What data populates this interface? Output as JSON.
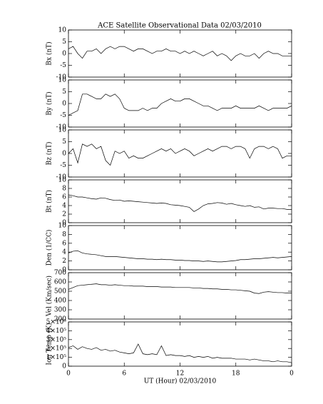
{
  "chart_data": [
    {
      "type": "line",
      "title": "ACE Satellite Observational Data   02/03/2010",
      "ylabel": "Bx (nT)",
      "color": "#000000",
      "xlim": [
        0,
        24
      ],
      "ylim": [
        -10,
        10
      ],
      "yticks": [
        -10,
        -5,
        0,
        5,
        10
      ],
      "x": [
        0,
        0.5,
        1,
        1.5,
        2,
        2.5,
        3,
        3.5,
        4,
        4.5,
        5,
        5.5,
        6,
        6.5,
        7,
        7.5,
        8,
        8.5,
        9,
        9.5,
        10,
        10.5,
        11,
        11.5,
        12,
        12.5,
        13,
        13.5,
        14,
        14.5,
        15,
        15.5,
        16,
        16.5,
        17,
        17.5,
        18,
        18.5,
        19,
        19.5,
        20,
        20.5,
        21,
        21.5,
        22,
        22.5,
        23,
        23.5,
        24
      ],
      "values": [
        2,
        3,
        0,
        -2,
        1,
        1,
        2,
        0,
        2,
        3,
        2,
        3,
        3,
        2,
        1,
        2,
        2,
        1,
        0,
        1,
        1,
        2,
        1,
        1,
        0,
        1,
        0,
        1,
        0,
        -1,
        0,
        1,
        -1,
        0,
        -1,
        -3,
        -1,
        0,
        -1,
        -1,
        0,
        -2,
        0,
        1,
        0,
        0,
        -1,
        -1,
        -1
      ]
    },
    {
      "type": "line",
      "ylabel": "By (nT)",
      "color": "#000000",
      "xlim": [
        0,
        24
      ],
      "ylim": [
        -10,
        10
      ],
      "yticks": [
        -10,
        -5,
        0,
        5,
        10
      ],
      "x": [
        0,
        0.5,
        1,
        1.5,
        2,
        2.5,
        3,
        3.5,
        4,
        4.5,
        5,
        5.5,
        6,
        6.5,
        7,
        7.5,
        8,
        8.5,
        9,
        9.5,
        10,
        10.5,
        11,
        11.5,
        12,
        12.5,
        13,
        13.5,
        14,
        14.5,
        15,
        15.5,
        16,
        16.5,
        17,
        17.5,
        18,
        18.5,
        19,
        19.5,
        20,
        20.5,
        21,
        21.5,
        22,
        22.5,
        23,
        23.5,
        24
      ],
      "values": [
        -5,
        -4,
        -3,
        4,
        4,
        3,
        2,
        2,
        4,
        3,
        4,
        2,
        -2,
        -3,
        -3,
        -3,
        -2,
        -3,
        -2,
        -2,
        0,
        1,
        2,
        1,
        1,
        2,
        2,
        1,
        0,
        -1,
        -1,
        -2,
        -3,
        -2,
        -2,
        -2,
        -1,
        -2,
        -2,
        -2,
        -2,
        -1,
        -2,
        -3,
        -2,
        -2,
        -2,
        -2,
        -1
      ]
    },
    {
      "type": "line",
      "ylabel": "Bz (nT)",
      "color": "#000000",
      "xlim": [
        0,
        24
      ],
      "ylim": [
        -10,
        10
      ],
      "yticks": [
        -10,
        -5,
        0,
        5,
        10
      ],
      "x": [
        0,
        0.5,
        1,
        1.5,
        2,
        2.5,
        3,
        3.5,
        4,
        4.5,
        5,
        5.5,
        6,
        6.5,
        7,
        7.5,
        8,
        8.5,
        9,
        9.5,
        10,
        10.5,
        11,
        11.5,
        12,
        12.5,
        13,
        13.5,
        14,
        14.5,
        15,
        15.5,
        16,
        16.5,
        17,
        17.5,
        18,
        18.5,
        19,
        19.5,
        20,
        20.5,
        21,
        21.5,
        22,
        22.5,
        23,
        23.5,
        24
      ],
      "values": [
        0,
        2,
        -4,
        4,
        3,
        4,
        2,
        3,
        -3,
        -5,
        1,
        0,
        1,
        -2,
        -1,
        -2,
        -2,
        -1,
        0,
        1,
        2,
        1,
        2,
        0,
        1,
        2,
        1,
        -1,
        0,
        1,
        2,
        1,
        2,
        3,
        3,
        2,
        3,
        3,
        2,
        -2,
        2,
        3,
        3,
        2,
        3,
        2,
        -2,
        -1,
        -1
      ]
    },
    {
      "type": "line",
      "ylabel": "Bt (nT)",
      "color": "#000000",
      "xlim": [
        0,
        24
      ],
      "ylim": [
        0,
        10
      ],
      "yticks": [
        0,
        2,
        4,
        6,
        8,
        10
      ],
      "x": [
        0,
        0.5,
        1,
        1.5,
        2,
        2.5,
        3,
        3.5,
        4,
        4.5,
        5,
        5.5,
        6,
        6.5,
        7,
        7.5,
        8,
        8.5,
        9,
        9.5,
        10,
        10.5,
        11,
        11.5,
        12,
        12.5,
        13,
        13.5,
        14,
        14.5,
        15,
        15.5,
        16,
        16.5,
        17,
        17.5,
        18,
        18.5,
        19,
        19.5,
        20,
        20.5,
        21,
        21.5,
        22,
        22.5,
        23,
        23.5,
        24
      ],
      "values": [
        6.5,
        6.3,
        6,
        6,
        5.8,
        5.6,
        5.5,
        5.8,
        5.7,
        5.4,
        5.2,
        5.3,
        5,
        5.1,
        5,
        4.9,
        4.8,
        4.7,
        4.6,
        4.5,
        4.6,
        4.5,
        4.2,
        4.1,
        4,
        3.8,
        3.6,
        2.6,
        3.2,
        4,
        4.4,
        4.5,
        4.7,
        4.6,
        4.3,
        4.5,
        4.2,
        4,
        3.8,
        4,
        3.6,
        3.7,
        3.2,
        3.4,
        3.4,
        3.3,
        3.3,
        3.1,
        3.1
      ]
    },
    {
      "type": "line",
      "ylabel": "Den (1/CC)",
      "color": "#000000",
      "xlim": [
        0,
        24
      ],
      "ylim": [
        0,
        10
      ],
      "yticks": [
        0,
        2,
        4,
        6,
        8,
        10
      ],
      "x": [
        0,
        0.5,
        1,
        1.5,
        2,
        2.5,
        3,
        3.5,
        4,
        4.5,
        5,
        5.5,
        6,
        6.5,
        7,
        7.5,
        8,
        8.5,
        9,
        9.5,
        10,
        10.5,
        11,
        11.5,
        12,
        12.5,
        13,
        13.5,
        14,
        14.5,
        15,
        15.5,
        16,
        16.5,
        17,
        17.5,
        18,
        18.5,
        19,
        19.5,
        20,
        20.5,
        21,
        21.5,
        22,
        22.5,
        23,
        23.5,
        24
      ],
      "values": [
        3.8,
        4.2,
        4.3,
        3.8,
        3.6,
        3.5,
        3.4,
        3.2,
        3,
        3,
        3,
        2.9,
        2.8,
        2.7,
        2.6,
        2.5,
        2.5,
        2.4,
        2.4,
        2.3,
        2.4,
        2.3,
        2.3,
        2.2,
        2.2,
        2.1,
        2.1,
        2,
        2,
        1.9,
        2,
        1.9,
        1.8,
        1.8,
        1.9,
        2,
        2.1,
        2.3,
        2.3,
        2.4,
        2.5,
        2.5,
        2.6,
        2.7,
        2.8,
        2.7,
        2.8,
        2.9,
        3
      ]
    },
    {
      "type": "line",
      "ylabel": "Vel (Km/sec)",
      "color": "#000000",
      "xlim": [
        0,
        24
      ],
      "ylim": [
        200,
        700
      ],
      "yticks": [
        200,
        300,
        400,
        500,
        600,
        700
      ],
      "x": [
        0,
        0.5,
        1,
        1.5,
        2,
        2.5,
        3,
        3.5,
        4,
        4.5,
        5,
        5.5,
        6,
        6.5,
        7,
        7.5,
        8,
        8.5,
        9,
        9.5,
        10,
        10.5,
        11,
        11.5,
        12,
        12.5,
        13,
        13.5,
        14,
        14.5,
        15,
        15.5,
        16,
        16.5,
        17,
        17.5,
        18,
        18.5,
        19,
        19.5,
        20,
        20.5,
        21,
        21.5,
        22,
        22.5,
        23,
        23.5,
        24
      ],
      "values": [
        520,
        540,
        560,
        565,
        570,
        575,
        580,
        570,
        570,
        565,
        570,
        565,
        560,
        560,
        555,
        555,
        555,
        550,
        550,
        550,
        545,
        545,
        545,
        540,
        540,
        540,
        540,
        535,
        535,
        530,
        530,
        525,
        525,
        520,
        520,
        515,
        515,
        510,
        505,
        500,
        480,
        475,
        490,
        495,
        490,
        485,
        485,
        480,
        480
      ]
    },
    {
      "type": "line",
      "ylabel": "Ion Temp (K)",
      "xlabel": "UT (Hour)   02/03/2010",
      "color": "#000000",
      "xlim": [
        0,
        24
      ],
      "xticks": [
        0,
        6,
        12,
        18,
        {
          "value": 24,
          "label": "0"
        }
      ],
      "ylim": [
        0,
        500000
      ],
      "yticks": [
        0,
        {
          "value": 100000,
          "label": "1×10⁵"
        },
        {
          "value": 200000,
          "label": "2×10⁵"
        },
        {
          "value": 300000,
          "label": "3×10⁵"
        },
        {
          "value": 400000,
          "label": "4×10⁵"
        },
        {
          "value": 500000,
          "label": "5×10⁵"
        }
      ],
      "x": [
        0,
        0.5,
        1,
        1.5,
        2,
        2.5,
        3,
        3.5,
        4,
        4.5,
        5,
        5.5,
        6,
        6.5,
        7,
        7.5,
        8,
        8.5,
        9,
        9.5,
        10,
        10.5,
        11,
        11.5,
        12,
        12.5,
        13,
        13.5,
        14,
        14.5,
        15,
        15.5,
        16,
        16.5,
        17,
        17.5,
        18,
        18.5,
        19,
        19.5,
        20,
        20.5,
        21,
        21.5,
        22,
        22.5,
        23,
        23.5,
        24
      ],
      "values": [
        210000,
        230000,
        190000,
        220000,
        200000,
        190000,
        210000,
        180000,
        190000,
        170000,
        180000,
        160000,
        150000,
        140000,
        150000,
        250000,
        140000,
        130000,
        140000,
        130000,
        230000,
        120000,
        130000,
        120000,
        120000,
        110000,
        120000,
        100000,
        110000,
        100000,
        110000,
        90000,
        100000,
        90000,
        90000,
        90000,
        80000,
        80000,
        80000,
        70000,
        80000,
        70000,
        60000,
        60000,
        50000,
        60000,
        50000,
        50000,
        40000
      ]
    }
  ]
}
